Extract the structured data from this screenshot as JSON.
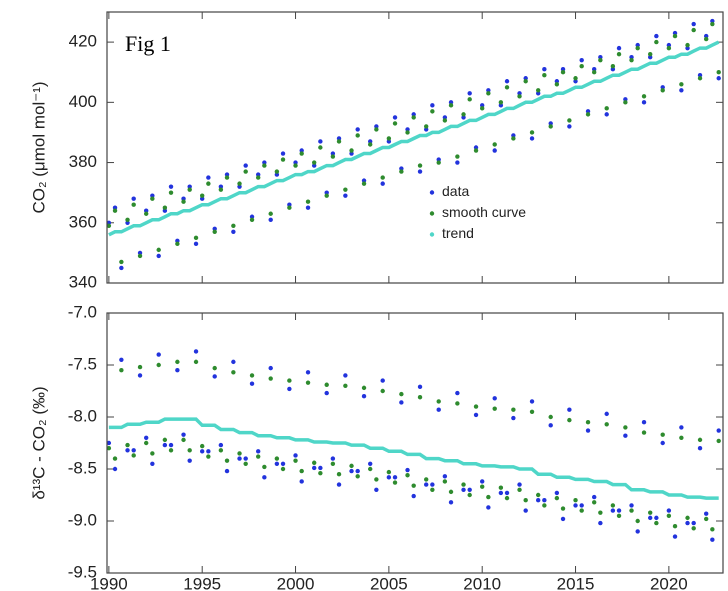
{
  "chart_data": [
    {
      "type": "scatter",
      "ylabel": "CO₂ (μmol mol⁻¹)",
      "annotation": "Fig 1",
      "legend": "center-right",
      "xlim": [
        1989.9,
        2022.9
      ],
      "xticks": [
        1990,
        1995,
        2000,
        2005,
        2010,
        2015,
        2020
      ],
      "ylim": [
        340,
        430
      ],
      "yticks": [
        340,
        360,
        380,
        400,
        420
      ],
      "x": [
        1990,
        1990.33,
        1990.67,
        1991,
        1991.33,
        1991.67,
        1992,
        1992.33,
        1992.67,
        1993,
        1993.33,
        1993.67,
        1994,
        1994.33,
        1994.67,
        1995,
        1995.33,
        1995.67,
        1996,
        1996.33,
        1996.67,
        1997,
        1997.33,
        1997.67,
        1998,
        1998.33,
        1998.67,
        1999,
        1999.33,
        1999.67,
        2000,
        2000.33,
        2000.67,
        2001,
        2001.33,
        2001.67,
        2002,
        2002.33,
        2002.67,
        2003,
        2003.33,
        2003.67,
        2004,
        2004.33,
        2004.67,
        2005,
        2005.33,
        2005.67,
        2006,
        2006.33,
        2006.67,
        2007,
        2007.33,
        2007.67,
        2008,
        2008.33,
        2008.67,
        2009,
        2009.33,
        2009.67,
        2010,
        2010.33,
        2010.67,
        2011,
        2011.33,
        2011.67,
        2012,
        2012.33,
        2012.67,
        2013,
        2013.33,
        2013.67,
        2014,
        2014.33,
        2014.67,
        2015,
        2015.33,
        2015.67,
        2016,
        2016.33,
        2016.67,
        2017,
        2017.33,
        2017.67,
        2018,
        2018.33,
        2018.67,
        2019,
        2019.33,
        2019.67,
        2020,
        2020.33,
        2020.67,
        2021,
        2021.33,
        2021.67,
        2022,
        2022.33,
        2022.67
      ],
      "series": [
        {
          "name": "data",
          "color": "#2233dd",
          "style": "dots",
          "values": [
            360,
            365,
            345,
            360,
            368,
            350,
            364,
            369,
            349,
            364,
            372,
            354,
            368,
            372,
            353,
            368,
            375,
            358,
            372,
            376,
            357,
            372,
            379,
            362,
            376,
            380,
            361,
            376,
            383,
            366,
            380,
            384,
            365,
            379,
            387,
            370,
            383,
            388,
            369,
            383,
            391,
            374,
            387,
            392,
            373,
            387,
            395,
            378,
            391,
            396,
            377,
            391,
            399,
            381,
            395,
            400,
            380,
            395,
            403,
            385,
            399,
            404,
            384,
            399,
            407,
            389,
            403,
            408,
            388,
            403,
            411,
            393,
            407,
            411,
            392,
            407,
            414,
            397,
            411,
            415,
            396,
            411,
            418,
            401,
            415,
            419,
            400,
            415,
            422,
            405,
            419,
            423,
            404,
            418,
            426,
            409,
            422,
            427,
            408
          ]
        },
        {
          "name": "smooth curve",
          "color": "#2e8b2e",
          "style": "dots",
          "values": [
            359,
            364,
            347,
            361,
            366,
            349,
            363,
            368,
            351,
            365,
            370,
            353,
            367,
            371,
            355,
            369,
            373,
            357,
            371,
            375,
            359,
            373,
            377,
            361,
            375,
            379,
            363,
            377,
            381,
            365,
            379,
            383,
            367,
            380,
            385,
            369,
            382,
            387,
            371,
            384,
            389,
            373,
            386,
            391,
            375,
            388,
            393,
            377,
            390,
            395,
            379,
            392,
            397,
            380,
            394,
            399,
            382,
            396,
            401,
            384,
            398,
            403,
            386,
            400,
            405,
            388,
            402,
            407,
            390,
            404,
            409,
            392,
            406,
            410,
            394,
            408,
            412,
            396,
            410,
            414,
            398,
            412,
            416,
            400,
            414,
            418,
            402,
            416,
            420,
            404,
            418,
            422,
            406,
            419,
            424,
            408,
            421,
            426,
            410
          ]
        },
        {
          "name": "trend",
          "color": "#4fd6c8",
          "style": "line",
          "values": [
            356,
            357,
            357,
            358,
            359,
            359,
            360,
            361,
            361,
            362,
            363,
            363,
            364,
            364,
            365,
            366,
            366,
            367,
            368,
            368,
            369,
            370,
            370,
            371,
            372,
            372,
            373,
            374,
            374,
            375,
            376,
            376,
            377,
            377,
            378,
            379,
            379,
            380,
            381,
            381,
            382,
            383,
            383,
            384,
            385,
            385,
            386,
            387,
            387,
            388,
            389,
            389,
            390,
            390,
            391,
            392,
            392,
            393,
            394,
            394,
            395,
            396,
            396,
            397,
            398,
            398,
            399,
            400,
            400,
            401,
            402,
            402,
            403,
            403,
            404,
            405,
            405,
            406,
            407,
            407,
            408,
            409,
            409,
            410,
            411,
            411,
            412,
            413,
            413,
            414,
            415,
            415,
            416,
            416,
            417,
            418,
            418,
            419,
            420
          ]
        }
      ]
    },
    {
      "type": "scatter",
      "ylabel": "δ¹³C - CO₂ (‰)",
      "xlim": [
        1989.9,
        2022.9
      ],
      "xticks": [
        1990,
        1995,
        2000,
        2005,
        2010,
        2015,
        2020
      ],
      "ylim": [
        -9.5,
        -7.0
      ],
      "yticks": [
        {
          "value": -9.5,
          "label": "-9.5"
        },
        {
          "value": -9,
          "label": "-9.0"
        },
        -8.5,
        {
          "value": -8,
          "label": "-8.0"
        },
        -7.5,
        {
          "value": -7,
          "label": "-7.0"
        }
      ],
      "x": [
        1990,
        1990.33,
        1990.67,
        1991,
        1991.33,
        1991.67,
        1992,
        1992.33,
        1992.67,
        1993,
        1993.33,
        1993.67,
        1994,
        1994.33,
        1994.67,
        1995,
        1995.33,
        1995.67,
        1996,
        1996.33,
        1996.67,
        1997,
        1997.33,
        1997.67,
        1998,
        1998.33,
        1998.67,
        1999,
        1999.33,
        1999.67,
        2000,
        2000.33,
        2000.67,
        2001,
        2001.33,
        2001.67,
        2002,
        2002.33,
        2002.67,
        2003,
        2003.33,
        2003.67,
        2004,
        2004.33,
        2004.67,
        2005,
        2005.33,
        2005.67,
        2006,
        2006.33,
        2006.67,
        2007,
        2007.33,
        2007.67,
        2008,
        2008.33,
        2008.67,
        2009,
        2009.33,
        2009.67,
        2010,
        2010.33,
        2010.67,
        2011,
        2011.33,
        2011.67,
        2012,
        2012.33,
        2012.67,
        2013,
        2013.33,
        2013.67,
        2014,
        2014.33,
        2014.67,
        2015,
        2015.33,
        2015.67,
        2016,
        2016.33,
        2016.67,
        2017,
        2017.33,
        2017.67,
        2018,
        2018.33,
        2018.67,
        2019,
        2019.33,
        2019.67,
        2020,
        2020.33,
        2020.67,
        2021,
        2021.33,
        2021.67,
        2022,
        2022.33,
        2022.67
      ],
      "series": [
        {
          "name": "data",
          "color": "#2233dd",
          "style": "dots",
          "values": [
            -8.25,
            -8.5,
            -7.45,
            -8.32,
            -8.32,
            -7.6,
            -8.2,
            -8.45,
            -7.4,
            -8.27,
            -8.27,
            -7.55,
            -8.17,
            -8.42,
            -7.37,
            -8.33,
            -8.33,
            -7.61,
            -8.27,
            -8.52,
            -7.47,
            -8.4,
            -8.4,
            -7.68,
            -8.33,
            -8.58,
            -7.53,
            -8.45,
            -8.45,
            -7.73,
            -8.37,
            -8.62,
            -7.57,
            -8.49,
            -8.49,
            -7.77,
            -8.4,
            -8.65,
            -7.6,
            -8.52,
            -8.52,
            -7.8,
            -8.45,
            -8.7,
            -7.65,
            -8.58,
            -8.58,
            -7.86,
            -8.51,
            -8.76,
            -7.71,
            -8.65,
            -8.65,
            -7.93,
            -8.57,
            -8.82,
            -7.77,
            -8.7,
            -8.7,
            -7.98,
            -8.62,
            -8.87,
            -7.82,
            -8.73,
            -8.73,
            -8.01,
            -8.65,
            -8.9,
            -7.85,
            -8.8,
            -8.8,
            -8.08,
            -8.73,
            -8.98,
            -7.93,
            -8.85,
            -8.85,
            -8.13,
            -8.77,
            -9.02,
            -7.97,
            -8.9,
            -8.9,
            -8.18,
            -8.85,
            -9.1,
            -8.05,
            -8.97,
            -8.97,
            -8.25,
            -8.9,
            -9.15,
            -8.1,
            -9.02,
            -9.02,
            -8.3,
            -8.93,
            -9.18,
            -8.13
          ]
        },
        {
          "name": "smooth curve",
          "color": "#2e8b2e",
          "style": "dots",
          "values": [
            -8.3,
            -8.4,
            -7.55,
            -8.27,
            -8.37,
            -7.52,
            -8.25,
            -8.35,
            -7.5,
            -8.22,
            -8.32,
            -7.47,
            -8.22,
            -8.32,
            -7.47,
            -8.28,
            -8.38,
            -7.53,
            -8.32,
            -8.42,
            -7.57,
            -8.35,
            -8.45,
            -7.6,
            -8.38,
            -8.48,
            -7.63,
            -8.4,
            -8.5,
            -7.65,
            -8.42,
            -8.52,
            -7.67,
            -8.44,
            -8.54,
            -7.69,
            -8.45,
            -8.55,
            -7.7,
            -8.47,
            -8.57,
            -7.72,
            -8.5,
            -8.6,
            -7.75,
            -8.53,
            -8.63,
            -7.78,
            -8.56,
            -8.66,
            -7.81,
            -8.6,
            -8.7,
            -7.85,
            -8.62,
            -8.72,
            -7.87,
            -8.65,
            -8.75,
            -7.9,
            -8.67,
            -8.77,
            -7.92,
            -8.68,
            -8.78,
            -7.93,
            -8.7,
            -8.8,
            -7.95,
            -8.75,
            -8.85,
            -8,
            -8.78,
            -8.88,
            -8.03,
            -8.8,
            -8.9,
            -8.05,
            -8.82,
            -8.92,
            -8.07,
            -8.85,
            -8.95,
            -8.1,
            -8.9,
            -9,
            -8.15,
            -8.92,
            -9.02,
            -8.17,
            -8.95,
            -9.05,
            -8.2,
            -8.97,
            -9.07,
            -8.22,
            -8.98,
            -9.08,
            -8.23
          ]
        },
        {
          "name": "trend",
          "color": "#4fd6c8",
          "style": "line",
          "values": [
            -8.1,
            -8.1,
            -8.1,
            -8.07,
            -8.07,
            -8.07,
            -8.05,
            -8.05,
            -8.05,
            -8.02,
            -8.02,
            -8.02,
            -8.02,
            -8.02,
            -8.02,
            -8.08,
            -8.08,
            -8.08,
            -8.12,
            -8.12,
            -8.12,
            -8.15,
            -8.15,
            -8.15,
            -8.18,
            -8.18,
            -8.18,
            -8.2,
            -8.2,
            -8.2,
            -8.22,
            -8.22,
            -8.22,
            -8.24,
            -8.24,
            -8.24,
            -8.25,
            -8.25,
            -8.25,
            -8.27,
            -8.27,
            -8.27,
            -8.3,
            -8.3,
            -8.3,
            -8.33,
            -8.33,
            -8.33,
            -8.36,
            -8.36,
            -8.36,
            -8.4,
            -8.4,
            -8.4,
            -8.42,
            -8.42,
            -8.42,
            -8.45,
            -8.45,
            -8.45,
            -8.47,
            -8.47,
            -8.47,
            -8.48,
            -8.48,
            -8.48,
            -8.5,
            -8.5,
            -8.5,
            -8.55,
            -8.55,
            -8.55,
            -8.58,
            -8.58,
            -8.58,
            -8.6,
            -8.6,
            -8.6,
            -8.62,
            -8.62,
            -8.62,
            -8.65,
            -8.65,
            -8.65,
            -8.7,
            -8.7,
            -8.7,
            -8.72,
            -8.72,
            -8.72,
            -8.75,
            -8.75,
            -8.75,
            -8.77,
            -8.77,
            -8.77,
            -8.78,
            -8.78,
            -8.78
          ]
        }
      ]
    }
  ]
}
